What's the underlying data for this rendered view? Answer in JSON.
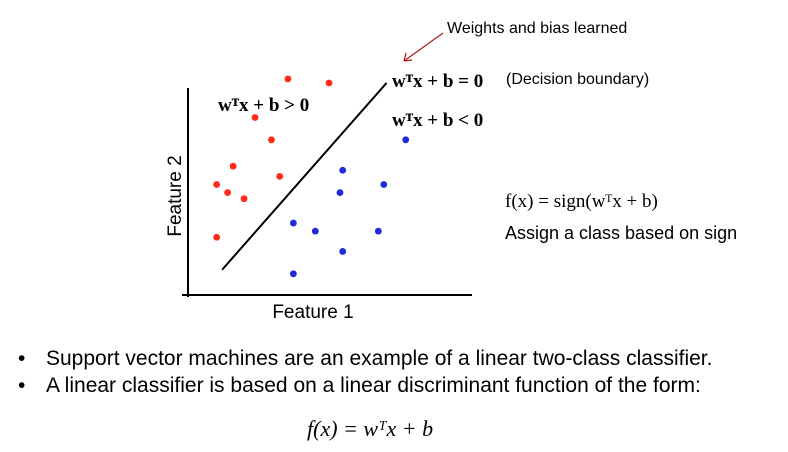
{
  "annotations": {
    "learned": "Weights and bias learned",
    "boundary_eq": "wᵀx + b = 0",
    "boundary_label": "(Decision boundary)",
    "positive_region": "wᵀx + b > 0",
    "negative_region": "wᵀx + b < 0",
    "sign_function": "f(x) = sign(wᵀx + b)",
    "assign": "Assign a class based on sign"
  },
  "chart_data": {
    "type": "scatter",
    "xlabel": "Feature 1",
    "ylabel": "Feature 2",
    "xlim": [
      0,
      100
    ],
    "ylim": [
      0,
      100
    ],
    "colors": {
      "class_a": "#ff2a1a",
      "class_b": "#1f2bd8",
      "boundary": "#000000"
    },
    "series": [
      {
        "color": "#ff2a1a",
        "points": [
          [
            35,
            103
          ],
          [
            50,
            101
          ],
          [
            23,
            84
          ],
          [
            29,
            73
          ],
          [
            15,
            60
          ],
          [
            32,
            55
          ],
          [
            9,
            51
          ],
          [
            13,
            47
          ],
          [
            19,
            44
          ],
          [
            9,
            25
          ]
        ]
      },
      {
        "color": "#1f2bd8",
        "points": [
          [
            78,
            73
          ],
          [
            55,
            58
          ],
          [
            70,
            51
          ],
          [
            54,
            47
          ],
          [
            37,
            32
          ],
          [
            45,
            28
          ],
          [
            68,
            28
          ],
          [
            55,
            18
          ],
          [
            37,
            7
          ]
        ]
      }
    ],
    "boundary_line": [
      [
        11,
        9
      ],
      [
        71,
        101
      ]
    ]
  },
  "bullets": [
    "Support vector machines are an example of a linear two-class classifier.",
    "A linear classifier is based on a linear discriminant function of the form:"
  ],
  "formula": "f(x) = wᵀx + b"
}
